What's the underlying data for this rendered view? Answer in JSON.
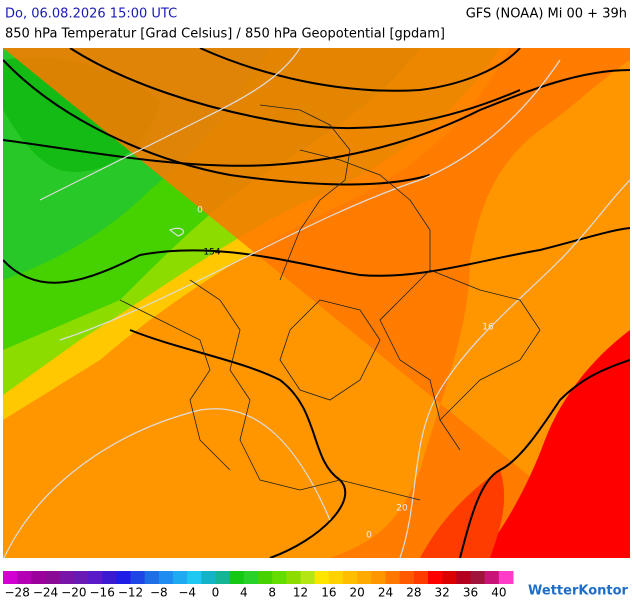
{
  "header": {
    "datetime": "Do, 06.08.2026 15:00 UTC",
    "model": "GFS (NOAA) Mi 00 + 39h",
    "title": "850 hPa Temperatur [Grad Celsius] / 850 hPa Geopotential [gpdam]"
  },
  "map": {
    "labels": [
      "154",
      "0",
      "16",
      "20",
      "0"
    ]
  },
  "legend": {
    "labels": [
      "−28",
      "−24",
      "−20",
      "−16",
      "−12",
      "−8",
      "−4",
      "0",
      "4",
      "8",
      "12",
      "16",
      "20",
      "24",
      "28",
      "32",
      "36",
      "40"
    ],
    "colors": [
      "#d200d2",
      "#b400b4",
      "#9c009c",
      "#8a0a96",
      "#7814a8",
      "#6a1ab4",
      "#5a1ac8",
      "#3c1ad2",
      "#1e1ee6",
      "#1e46e6",
      "#1e6ee6",
      "#1e8cf0",
      "#1eaaf0",
      "#1ec8f0",
      "#14b4c8",
      "#14b496",
      "#14c814",
      "#28d228",
      "#46d200",
      "#64dc00",
      "#8cdc00",
      "#b4e614",
      "#ffe600",
      "#ffd200",
      "#ffbe00",
      "#ffaa00",
      "#ff9600",
      "#ff7800",
      "#ff5a00",
      "#ff3c00",
      "#ff0000",
      "#dc0000",
      "#b4001e",
      "#a0143c",
      "#c81478",
      "#ff3cc8"
    ],
    "brand": "WetterKontor"
  }
}
